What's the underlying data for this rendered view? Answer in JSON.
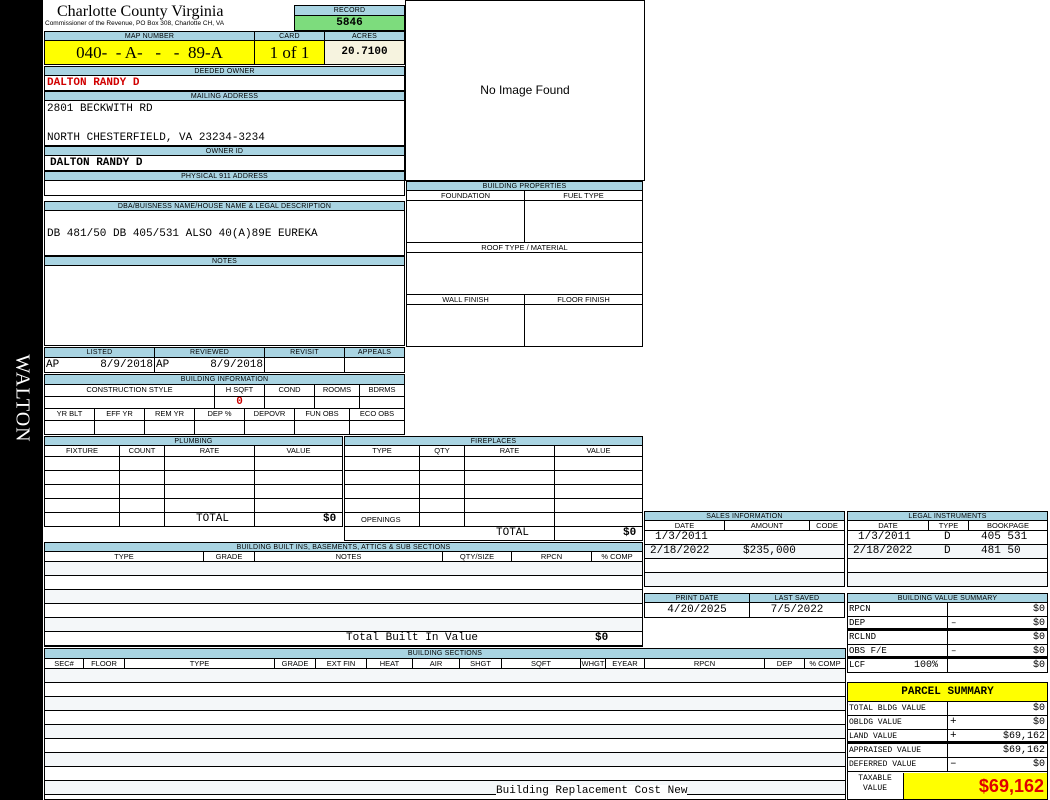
{
  "side_label": "WALTON",
  "header": {
    "title": "Charlotte County Virginia",
    "subtitle": "Commissioner of the Revenue, PO Box 308, Charlotte CH, VA",
    "record_label": "RECORD",
    "record": "5846"
  },
  "map": {
    "map_label": "MAP NUMBER",
    "map_number": "040-  - A-   -   -  89-A",
    "card_label": "CARD",
    "card": "1 of 1",
    "acres_label": "ACRES",
    "acres": "20.7100"
  },
  "owner": {
    "deeded_label": "DEEDED OWNER",
    "deeded": "DALTON RANDY D",
    "mailing_label": "MAILING ADDRESS",
    "mailing_line1": "2801 BECKWITH RD",
    "mailing_line2": "NORTH CHESTERFIELD, VA 23234-3234",
    "owner_id_label": "OWNER ID",
    "owner_id": "DALTON RANDY D",
    "physical_label": "PHYSICAL 911 ADDRESS"
  },
  "image": {
    "text": "No Image Found"
  },
  "dba": {
    "label": "DBA/BUISNESS NAME/HOUSE NAME & LEGAL DESCRIPTION",
    "value": "DB 481/50 DB 405/531 ALSO 40(A)89E EUREKA"
  },
  "notes": {
    "label": "NOTES"
  },
  "bldg_props": {
    "label": "BUILDING PROPERTIES",
    "foundation": "FOUNDATION",
    "fuel": "FUEL TYPE",
    "roof": "ROOF TYPE / MATERIAL",
    "wall": "WALL FINISH",
    "floor": "FLOOR FINISH"
  },
  "review": {
    "listed_label": "LISTED",
    "listed_by": "AP",
    "listed_date": "8/9/2018",
    "reviewed_label": "REVIEWED",
    "reviewed_by": "AP",
    "reviewed_date": "8/9/2018",
    "revisit_label": "REVISIT",
    "appeals_label": "APPEALS"
  },
  "bldg_info": {
    "label": "BUILDING INFORMATION",
    "cols1": [
      "CONSTRUCTION STYLE",
      "H SQFT",
      "COND",
      "ROOMS",
      "BDRMS"
    ],
    "hsqft": "0",
    "cols2": [
      "YR BLT",
      "EFF YR",
      "REM YR",
      "DEP %",
      "DEPOVR",
      "FUN OBS",
      "ECO OBS"
    ]
  },
  "plumbing": {
    "label": "PLUMBING",
    "cols": [
      "FIXTURE",
      "COUNT",
      "RATE",
      "VALUE"
    ],
    "total_label": "TOTAL",
    "total": "$0"
  },
  "fireplaces": {
    "label": "FIREPLACES",
    "cols": [
      "TYPE",
      "QTY",
      "RATE",
      "VALUE"
    ],
    "openings_label": "OPENINGS",
    "total_label": "TOTAL",
    "total": "$0"
  },
  "sales": {
    "label": "SALES INFORMATION",
    "cols": [
      "DATE",
      "AMOUNT",
      "CODE"
    ],
    "rows": [
      {
        "date": "1/3/2011",
        "amount": ""
      },
      {
        "date": "2/18/2022",
        "amount": "$235,000"
      }
    ]
  },
  "legal": {
    "label": "LEGAL INSTRUMENTS",
    "cols": [
      "DATE",
      "TYPE",
      "BOOKPAGE"
    ],
    "rows": [
      {
        "date": "1/3/2011",
        "type": "D",
        "bookpage": "405 531"
      },
      {
        "date": "2/18/2022",
        "type": "D",
        "bookpage": "481 50"
      }
    ]
  },
  "dates": {
    "print_label": "PRINT DATE",
    "print": "4/20/2025",
    "saved_label": "LAST SAVED",
    "saved": "7/5/2022"
  },
  "bvs": {
    "label": "BUILDING VALUE SUMMARY",
    "rows": [
      {
        "label": "RPCN",
        "op": "",
        "value": "$0"
      },
      {
        "label": "DEP",
        "op": "–",
        "value": "$0"
      },
      {
        "label": "RCLND",
        "op": "",
        "value": "$0"
      },
      {
        "label": "OBS F/E",
        "op": "–",
        "value": "$0"
      },
      {
        "label": "LCF",
        "pct": "100%",
        "op": "",
        "value": "$0"
      }
    ]
  },
  "builtins": {
    "label": "BUILDING BUILT INS, BASEMENTS, ATTICS & SUB SECTIONS",
    "cols": [
      "TYPE",
      "GRADE",
      "NOTES",
      "QTY/SIZE",
      "RPCN",
      "% COMP"
    ],
    "total_label": "Total Built In Value",
    "total": "$0"
  },
  "sections": {
    "label": "BUILDING SECTIONS",
    "cols": [
      "SEC#",
      "FLOOR",
      "TYPE",
      "GRADE",
      "EXT FIN",
      "HEAT",
      "AIR",
      "SHGT",
      "SQFT",
      "WHGT",
      "EYEAR",
      "RPCN",
      "DEP",
      "% COMP"
    ],
    "footer": "Building Replacement Cost New"
  },
  "parcel": {
    "label": "PARCEL SUMMARY",
    "rows": [
      {
        "label": "TOTAL BLDG VALUE",
        "op": "",
        "value": "$0"
      },
      {
        "label": "OBLDG VALUE",
        "op": "+",
        "value": "$0"
      },
      {
        "label": "LAND VALUE",
        "op": "+",
        "value": "$69,162"
      },
      {
        "label": "APPRAISED VALUE",
        "op": "",
        "value": "$69,162"
      },
      {
        "label": "DEFERRED VALUE",
        "op": "–",
        "value": "$0"
      }
    ],
    "taxable_label": "TAXABLE VALUE",
    "taxable": "$69,162"
  },
  "colors": {
    "header_blue": "#a9d4e2",
    "yellow": "#ffff00",
    "record_green": "#7ddc7d",
    "owner_red": "#d00000"
  }
}
